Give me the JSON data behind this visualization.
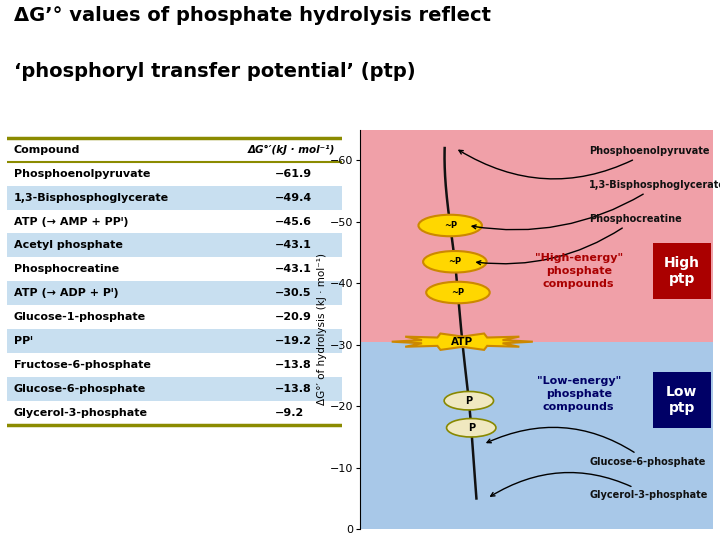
{
  "title_line1": "ΔG’° values of phosphate hydrolysis reflect",
  "title_line2": "‘phosphoryl transfer potential’ (ptp)",
  "background_color": "#ffffff",
  "table": {
    "header_compound": "Compound",
    "header_dg": "ΔG°′(kJ · mol⁻¹)",
    "rows": [
      {
        "compound": "Phosphoenolpyruvate",
        "value": "−61.9",
        "highlight": false
      },
      {
        "compound": "1,3-Bisphosphoglycerate",
        "value": "−49.4",
        "highlight": true
      },
      {
        "compound": "ATP (→ AMP + PPᴵ)",
        "value": "−45.6",
        "highlight": false
      },
      {
        "compound": "Acetyl phosphate",
        "value": "−43.1",
        "highlight": true
      },
      {
        "compound": "Phosphocreatine",
        "value": "−43.1",
        "highlight": false
      },
      {
        "compound": "ATP (→ ADP + Pᴵ)",
        "value": "−30.5",
        "highlight": true
      },
      {
        "compound": "Glucose-1-phosphate",
        "value": "−20.9",
        "highlight": false
      },
      {
        "compound": "PPᴵ",
        "value": "−19.2",
        "highlight": true
      },
      {
        "compound": "Fructose-6-phosphate",
        "value": "−13.8",
        "highlight": false
      },
      {
        "compound": "Glucose-6-phosphate",
        "value": "−13.8",
        "highlight": true
      },
      {
        "compound": "Glycerol-3-phosphate",
        "value": "−9.2",
        "highlight": false
      }
    ],
    "highlight_color": "#c8dff0",
    "border_color": "#8B8B00"
  },
  "diagram": {
    "bg_high": "#f0a0a8",
    "bg_low": "#a8c8e8",
    "high_ptp_bg": "#aa0000",
    "low_ptp_bg": "#000066",
    "atp_color": "#ffd700",
    "atp_outline": "#cc8800",
    "tilde_p_color": "#ffd700",
    "tilde_p_outline": "#cc8800",
    "p_color": "#f0e8c0",
    "p_outline": "#888800",
    "curve_color": "#111111",
    "high_energy_color": "#aa0000",
    "low_energy_color": "#000066",
    "label_color": "#111111",
    "y_min": 0,
    "y_max": 65,
    "yticks": [
      0,
      10,
      20,
      30,
      40,
      50,
      60
    ],
    "ytick_labels": [
      "0",
      "−10",
      "−20",
      "−30",
      "−40",
      "−50",
      "−60"
    ],
    "atp_dg": 30.5
  }
}
